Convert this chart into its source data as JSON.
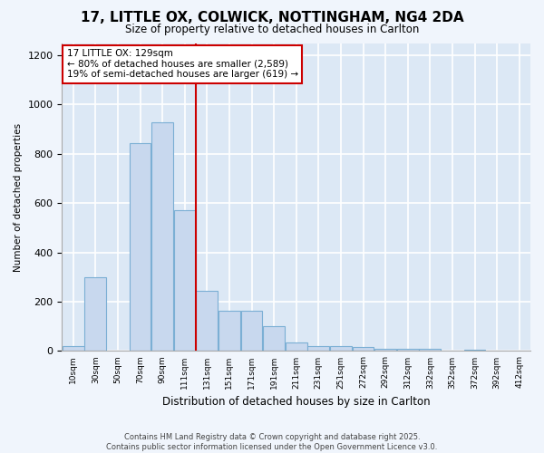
{
  "title_line1": "17, LITTLE OX, COLWICK, NOTTINGHAM, NG4 2DA",
  "title_line2": "Size of property relative to detached houses in Carlton",
  "xlabel": "Distribution of detached houses by size in Carlton",
  "ylabel": "Number of detached properties",
  "bar_color": "#c8d8ee",
  "bar_edge_color": "#7bafd4",
  "background_color": "#dce8f5",
  "grid_color": "#ffffff",
  "vline_x": 5,
  "vline_color": "#cc0000",
  "annotation_title": "17 LITTLE OX: 129sqm",
  "annotation_line1": "← 80% of detached houses are smaller (2,589)",
  "annotation_line2": "19% of semi-detached houses are larger (619) →",
  "categories": [
    "10sqm",
    "30sqm",
    "50sqm",
    "70sqm",
    "90sqm",
    "111sqm",
    "131sqm",
    "151sqm",
    "171sqm",
    "191sqm",
    "211sqm",
    "231sqm",
    "251sqm",
    "272sqm",
    "292sqm",
    "312sqm",
    "332sqm",
    "352sqm",
    "372sqm",
    "392sqm",
    "412sqm"
  ],
  "heights": [
    20,
    300,
    0,
    845,
    930,
    570,
    245,
    165,
    165,
    100,
    33,
    20,
    20,
    15,
    10,
    10,
    8,
    0,
    5,
    0,
    0
  ],
  "ylim": [
    0,
    1250
  ],
  "yticks": [
    0,
    200,
    400,
    600,
    800,
    1000,
    1200
  ],
  "footnote_line1": "Contains HM Land Registry data © Crown copyright and database right 2025.",
  "footnote_line2": "Contains public sector information licensed under the Open Government Licence v3.0."
}
